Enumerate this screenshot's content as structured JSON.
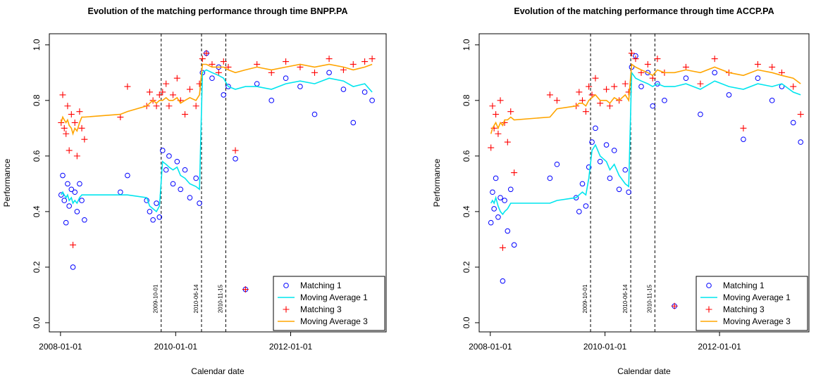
{
  "chart_data": [
    {
      "type": "scatter",
      "title": "Evolution of the matching performance through time BNPP.PA",
      "x_label": "Calendar date",
      "y_label": "Performance",
      "xlim": [
        "2007-10-22",
        "2013-08-29"
      ],
      "xticks": [
        "2008-01-01",
        "2010-01-01",
        "2012-01-01"
      ],
      "ylim": [
        -0.033,
        1.04
      ],
      "yticks": [
        {
          "value": 0,
          "label": "0.0"
        },
        {
          "value": 0.2,
          "label": "0.2"
        },
        {
          "value": 0.4,
          "label": "0.4"
        },
        {
          "value": 0.6,
          "label": "0.6"
        },
        {
          "value": 0.8,
          "label": "0.8"
        },
        {
          "value": 1,
          "label": "1.0"
        }
      ],
      "legend": "bottomright",
      "vlines": [
        "2009-10-01",
        "2010-06-14",
        "2010-11-15"
      ],
      "x": [
        "2008-01-05",
        "2008-01-15",
        "2008-01-25",
        "2008-02-05",
        "2008-02-15",
        "2008-02-25",
        "2008-03-10",
        "2008-03-20",
        "2008-04-01",
        "2008-04-15",
        "2008-05-01",
        "2008-05-15",
        "2008-06-01",
        "2009-01-15",
        "2009-03-01",
        "2009-07-01",
        "2009-07-20",
        "2009-08-10",
        "2009-09-01",
        "2009-09-20",
        "2009-10-10",
        "2009-11-01",
        "2009-11-20",
        "2009-12-15",
        "2010-01-10",
        "2010-02-01",
        "2010-03-01",
        "2010-04-01",
        "2010-05-10",
        "2010-06-01",
        "2010-06-20",
        "2010-07-15",
        "2010-08-20",
        "2010-10-01",
        "2010-11-01",
        "2010-12-01",
        "2011-01-15",
        "2011-03-20",
        "2011-06-01",
        "2011-09-01",
        "2011-12-01",
        "2012-03-01",
        "2012-06-01",
        "2012-09-01",
        "2012-12-01",
        "2013-02-01",
        "2013-04-15",
        "2013-06-01"
      ],
      "series": [
        {
          "name": "Matching 1",
          "color": "#0000ff",
          "style": "circle",
          "values": [
            0.46,
            0.53,
            0.44,
            0.36,
            0.5,
            0.42,
            0.48,
            0.2,
            0.47,
            0.4,
            0.5,
            0.44,
            0.37,
            0.47,
            0.53,
            0.44,
            0.4,
            0.37,
            0.43,
            0.38,
            0.62,
            0.55,
            0.6,
            0.5,
            0.58,
            0.48,
            0.55,
            0.45,
            0.52,
            0.43,
            0.9,
            0.97,
            0.88,
            0.92,
            0.82,
            0.85,
            0.59,
            0.12,
            0.86,
            0.8,
            0.88,
            0.85,
            0.75,
            0.9,
            0.84,
            0.72,
            0.83,
            0.8
          ]
        },
        {
          "name": "Moving Average 1",
          "color": "#00e5ee",
          "style": "line",
          "values": [
            0.46,
            0.47,
            0.46,
            0.45,
            0.46,
            0.44,
            0.45,
            0.43,
            0.44,
            0.43,
            0.45,
            0.46,
            0.46,
            0.46,
            0.46,
            0.45,
            0.42,
            0.41,
            0.4,
            0.42,
            0.58,
            0.57,
            0.56,
            0.55,
            0.56,
            0.53,
            0.52,
            0.5,
            0.49,
            0.48,
            0.9,
            0.91,
            0.9,
            0.89,
            0.88,
            0.85,
            0.84,
            0.85,
            0.85,
            0.84,
            0.86,
            0.87,
            0.86,
            0.88,
            0.87,
            0.85,
            0.86,
            0.83
          ]
        },
        {
          "name": "Matching 3",
          "color": "#ff0000",
          "style": "plus",
          "values": [
            0.72,
            0.82,
            0.7,
            0.68,
            0.78,
            0.62,
            0.75,
            0.28,
            0.72,
            0.6,
            0.76,
            0.7,
            0.66,
            0.74,
            0.85,
            0.78,
            0.83,
            0.8,
            0.78,
            0.82,
            0.83,
            0.86,
            0.78,
            0.82,
            0.88,
            0.8,
            0.75,
            0.84,
            0.78,
            0.86,
            0.95,
            0.97,
            0.93,
            0.9,
            0.94,
            0.92,
            0.62,
            0.12,
            0.93,
            0.9,
            0.94,
            0.92,
            0.9,
            0.95,
            0.91,
            0.93,
            0.94,
            0.95
          ]
        },
        {
          "name": "Moving Average 3",
          "color": "#ffa500",
          "style": "line",
          "values": [
            0.72,
            0.74,
            0.73,
            0.72,
            0.73,
            0.71,
            0.7,
            0.68,
            0.7,
            0.69,
            0.72,
            0.74,
            0.74,
            0.75,
            0.76,
            0.78,
            0.79,
            0.8,
            0.79,
            0.8,
            0.8,
            0.81,
            0.8,
            0.8,
            0.81,
            0.79,
            0.8,
            0.81,
            0.8,
            0.82,
            0.93,
            0.93,
            0.92,
            0.92,
            0.92,
            0.91,
            0.9,
            0.91,
            0.92,
            0.91,
            0.92,
            0.93,
            0.92,
            0.93,
            0.92,
            0.91,
            0.92,
            0.93
          ]
        }
      ]
    },
    {
      "type": "scatter",
      "title": "Evolution of the matching performance through time ACCP.PA",
      "x_label": "Calendar date",
      "y_label": "Performance",
      "xlim": [
        "2007-10-22",
        "2013-07-24"
      ],
      "xticks": [
        "2008-01-01",
        "2010-01-01",
        "2012-01-01"
      ],
      "ylim": [
        -0.033,
        1.04
      ],
      "yticks": [
        {
          "value": 0,
          "label": "0.0"
        },
        {
          "value": 0.2,
          "label": "0.2"
        },
        {
          "value": 0.4,
          "label": "0.4"
        },
        {
          "value": 0.6,
          "label": "0.6"
        },
        {
          "value": 0.8,
          "label": "0.8"
        },
        {
          "value": 1,
          "label": "1.0"
        }
      ],
      "legend": "bottomright",
      "vlines": [
        "2009-10-01",
        "2010-06-14",
        "2010-11-15"
      ],
      "x": [
        "2008-01-05",
        "2008-01-15",
        "2008-01-25",
        "2008-02-05",
        "2008-02-20",
        "2008-03-05",
        "2008-03-20",
        "2008-04-01",
        "2008-04-20",
        "2008-05-10",
        "2008-06-01",
        "2009-01-15",
        "2009-03-01",
        "2009-07-01",
        "2009-07-20",
        "2009-08-10",
        "2009-09-01",
        "2009-09-20",
        "2009-10-10",
        "2009-11-01",
        "2009-12-01",
        "2010-01-10",
        "2010-02-01",
        "2010-03-01",
        "2010-04-01",
        "2010-05-10",
        "2010-06-01",
        "2010-06-20",
        "2010-07-15",
        "2010-08-20",
        "2010-10-01",
        "2010-11-01",
        "2010-12-01",
        "2011-01-15",
        "2011-03-20",
        "2011-06-01",
        "2011-09-01",
        "2011-12-01",
        "2012-03-01",
        "2012-06-01",
        "2012-09-01",
        "2012-12-01",
        "2013-02-01",
        "2013-04-15",
        "2013-06-01"
      ],
      "series": [
        {
          "name": "Matching 1",
          "color": "#0000ff",
          "style": "circle",
          "values": [
            0.36,
            0.47,
            0.41,
            0.52,
            0.38,
            0.45,
            0.15,
            0.44,
            0.33,
            0.48,
            0.28,
            0.52,
            0.57,
            0.45,
            0.4,
            0.5,
            0.42,
            0.56,
            0.65,
            0.7,
            0.58,
            0.64,
            0.52,
            0.62,
            0.48,
            0.55,
            0.47,
            0.92,
            0.96,
            0.85,
            0.9,
            0.78,
            0.86,
            0.8,
            0.06,
            0.88,
            0.75,
            0.9,
            0.82,
            0.66,
            0.88,
            0.8,
            0.85,
            0.72,
            0.65
          ]
        },
        {
          "name": "Moving Average 1",
          "color": "#00e5ee",
          "style": "line",
          "values": [
            0.43,
            0.44,
            0.43,
            0.45,
            0.42,
            0.4,
            0.39,
            0.4,
            0.41,
            0.43,
            0.43,
            0.43,
            0.44,
            0.45,
            0.46,
            0.47,
            0.46,
            0.52,
            0.62,
            0.64,
            0.6,
            0.58,
            0.55,
            0.57,
            0.53,
            0.5,
            0.49,
            0.9,
            0.88,
            0.87,
            0.86,
            0.85,
            0.86,
            0.85,
            0.85,
            0.86,
            0.84,
            0.87,
            0.85,
            0.84,
            0.86,
            0.85,
            0.86,
            0.83,
            0.82
          ]
        },
        {
          "name": "Matching 3",
          "color": "#ff0000",
          "style": "plus",
          "values": [
            0.63,
            0.78,
            0.7,
            0.75,
            0.68,
            0.8,
            0.27,
            0.72,
            0.65,
            0.76,
            0.54,
            0.82,
            0.8,
            0.78,
            0.83,
            0.8,
            0.76,
            0.85,
            0.82,
            0.88,
            0.79,
            0.84,
            0.78,
            0.85,
            0.8,
            0.86,
            0.83,
            0.97,
            0.95,
            0.9,
            0.93,
            0.88,
            0.95,
            0.9,
            0.06,
            0.92,
            0.86,
            0.95,
            0.9,
            0.7,
            0.93,
            0.92,
            0.9,
            0.85,
            0.75
          ]
        },
        {
          "name": "Moving Average 3",
          "color": "#ffa500",
          "style": "line",
          "values": [
            0.68,
            0.7,
            0.71,
            0.72,
            0.7,
            0.72,
            0.71,
            0.73,
            0.73,
            0.74,
            0.73,
            0.74,
            0.77,
            0.78,
            0.79,
            0.79,
            0.78,
            0.8,
            0.81,
            0.82,
            0.8,
            0.8,
            0.79,
            0.81,
            0.8,
            0.82,
            0.8,
            0.93,
            0.92,
            0.91,
            0.9,
            0.89,
            0.91,
            0.9,
            0.9,
            0.91,
            0.9,
            0.92,
            0.9,
            0.89,
            0.91,
            0.9,
            0.89,
            0.88,
            0.86
          ]
        }
      ]
    }
  ]
}
